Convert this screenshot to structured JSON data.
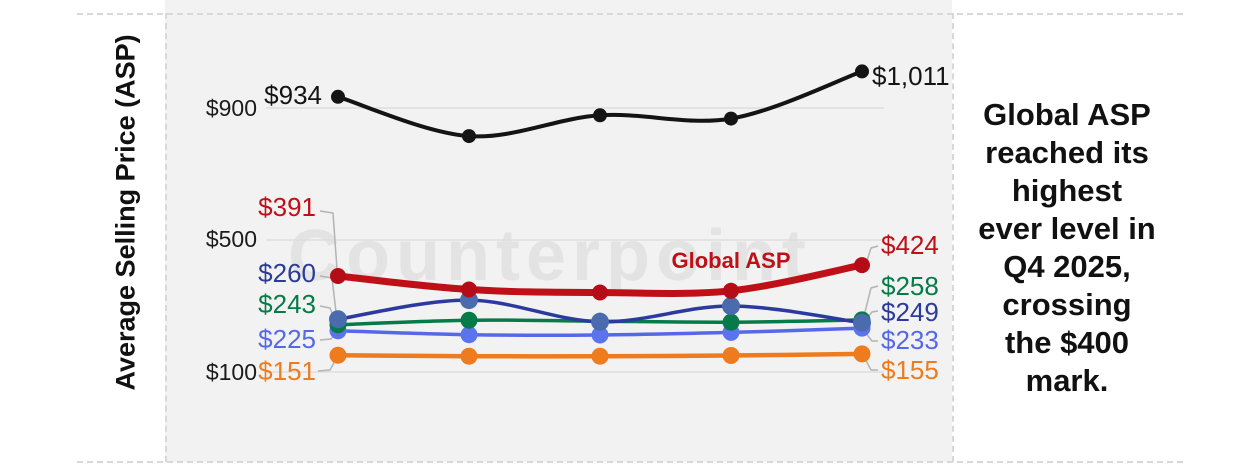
{
  "y_axis": {
    "title": "Average Selling Price (ASP)",
    "ticks": [
      {
        "label": "$900",
        "value": 900
      },
      {
        "label": "$500",
        "value": 500
      },
      {
        "label": "$100",
        "value": 100
      }
    ]
  },
  "watermark": "Counterpoint",
  "panel": {
    "full_text": "Global ASP reached its highest ever level in Q4 2025, crossing the $400 mark.",
    "lines": [
      "Global ASP",
      "reached its",
      "highest",
      "ever level in",
      "Q4 2025,",
      "crossing",
      "the $400",
      "mark."
    ]
  },
  "chart_data": {
    "type": "line",
    "x": [
      1,
      2,
      3,
      4,
      5
    ],
    "x_labels_visible": false,
    "ylabel": "Average Selling Price (ASP)",
    "ylim": [
      0,
      1150
    ],
    "gridlines": [
      100,
      500,
      900
    ],
    "legend_position": "none",
    "note": "Only first and last points of each series are labeled; middle values estimated from gridlines. Annotation says last point is Q4 2025.",
    "series": [
      {
        "id": "black",
        "color": "#141414",
        "values": [
          934,
          815,
          878,
          868,
          1011
        ],
        "start_label": "$934",
        "end_label": "$1,011"
      },
      {
        "id": "global-asp",
        "label": "Global ASP",
        "color": "#bf1017",
        "values": [
          391,
          350,
          341,
          346,
          424
        ],
        "start_label": "$391",
        "end_label": "$424"
      },
      {
        "id": "navy",
        "color": "#2b3a9c",
        "values": [
          260,
          318,
          252,
          300,
          249
        ],
        "start_label": "$260",
        "end_label": "$249"
      },
      {
        "id": "green",
        "color": "#077a49",
        "values": [
          243,
          257,
          254,
          251,
          258
        ],
        "start_label": "$243",
        "end_label": "$258"
      },
      {
        "id": "periwinkle",
        "color": "#5569e8",
        "values": [
          225,
          213,
          212,
          220,
          233
        ],
        "start_label": "$225",
        "end_label": "$233"
      },
      {
        "id": "orange",
        "color": "#ee7c1e",
        "values": [
          151,
          148,
          148,
          150,
          155
        ],
        "start_label": "$151",
        "end_label": "$155"
      }
    ]
  }
}
